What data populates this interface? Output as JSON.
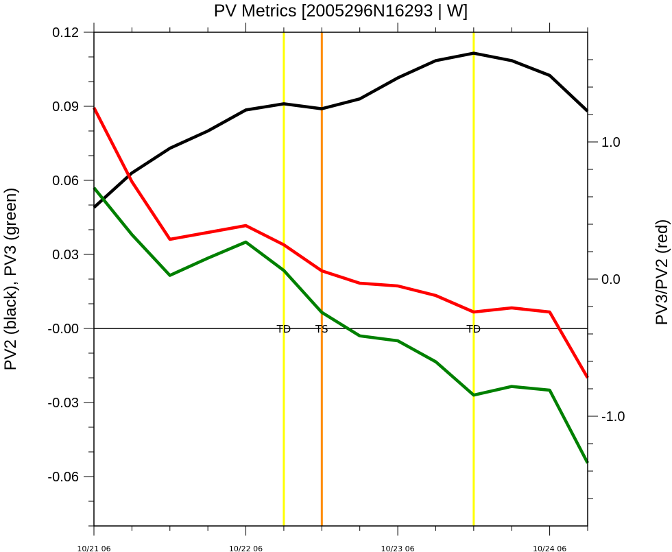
{
  "chart_data": {
    "type": "line",
    "title": "PV Metrics [2005296N16293 | W]",
    "ylabel_left": "PV2 (black), PV3 (green)",
    "ylabel_right": "PV3/PV2 (red)",
    "x_range": [
      0,
      13
    ],
    "x_ticks": [
      {
        "x": 0,
        "label": "10/21 06"
      },
      {
        "x": 4,
        "label": "10/22 06"
      },
      {
        "x": 8,
        "label": "10/23 06"
      },
      {
        "x": 12,
        "label": "10/24 06"
      }
    ],
    "y_left_range": [
      -0.08,
      0.12
    ],
    "y_left_ticks": [
      {
        "v": 0.12,
        "label": "0.12"
      },
      {
        "v": 0.09,
        "label": "0.09"
      },
      {
        "v": 0.06,
        "label": "0.06"
      },
      {
        "v": 0.03,
        "label": "0.03"
      },
      {
        "v": 0.0,
        "label": "-0.00"
      },
      {
        "v": -0.03,
        "label": "-0.03"
      },
      {
        "v": -0.06,
        "label": "-0.06"
      }
    ],
    "y_right_range": [
      -1.8,
      1.8
    ],
    "y_right_ticks": [
      {
        "v": 1.0,
        "label": "1.0"
      },
      {
        "v": 0.0,
        "label": "0.0"
      },
      {
        "v": -1.0,
        "label": "-1.0"
      }
    ],
    "zero_line": 0.0,
    "series": [
      {
        "color": "#000000",
        "axis": "left",
        "x": [
          0,
          1,
          2,
          3,
          4,
          5,
          6,
          7,
          8,
          9,
          10,
          11,
          12,
          13
        ],
        "values": [
          0.049,
          0.063,
          0.073,
          0.08,
          0.0885,
          0.091,
          0.089,
          0.093,
          0.1015,
          0.1085,
          0.1115,
          0.1085,
          0.1025,
          0.088
        ]
      },
      {
        "color": "#008000",
        "axis": "left",
        "x": [
          0,
          1,
          2,
          3,
          4,
          5,
          6,
          7,
          8,
          9,
          10,
          11,
          12,
          13
        ],
        "values": [
          0.057,
          0.038,
          0.0215,
          0.0285,
          0.035,
          0.0235,
          0.0065,
          -0.003,
          -0.005,
          -0.0135,
          -0.027,
          -0.0235,
          -0.025,
          -0.0545
        ]
      },
      {
        "color": "#ff0000",
        "axis": "right",
        "x": [
          0,
          1,
          2,
          3,
          4,
          5,
          6,
          7,
          8,
          9,
          10,
          11,
          12,
          13
        ],
        "values": [
          1.25,
          0.71,
          0.29,
          0.34,
          0.39,
          0.25,
          0.06,
          -0.03,
          -0.05,
          -0.12,
          -0.24,
          -0.21,
          -0.24,
          -0.72
        ]
      }
    ],
    "vlines": [
      {
        "x": 5.0,
        "label": "TD",
        "color": "#ffff00"
      },
      {
        "x": 6.0,
        "label": "TS",
        "color": "#ff8c00"
      },
      {
        "x": 10.0,
        "label": "TD",
        "color": "#ffff00"
      }
    ]
  }
}
